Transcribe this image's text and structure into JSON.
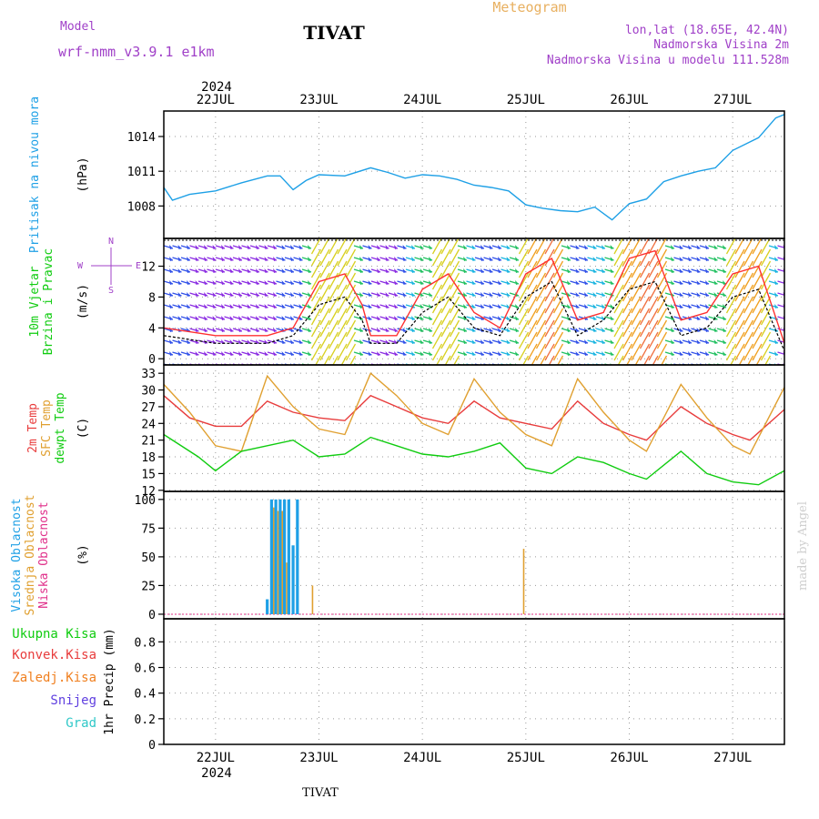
{
  "header": {
    "title": "TIVAT",
    "subtitle": "Meteogram",
    "model_label": "Model",
    "model_name": "wrf-nmm_v3.9.1 e1km",
    "location": "lon,lat (18.65E, 42.4N)",
    "elevation": "Nadmorska Visina 2m",
    "model_elevation": "Nadmorska Visina u modelu 111.528m"
  },
  "footer": {
    "station": "TIVAT",
    "credit": "made by Angel"
  },
  "colors": {
    "pressure": "#1ea0e6",
    "wind_speed": "#000000",
    "wind_gust": "#ff3030",
    "temp_2m": "#e83c3c",
    "temp_sfc": "#e0a030",
    "dewpoint": "#10cc10",
    "cloud_high": "#1ea0e6",
    "cloud_mid": "#e0a030",
    "cloud_low": "#e0308a",
    "precip_total": "#10cc10",
    "precip_conv": "#e83c3c",
    "precip_frozen": "#f08020",
    "snow": "#6040e0",
    "hail": "#30c8c8",
    "label_purple": "#a040c8"
  },
  "chart_data": {
    "type": "line",
    "x_axis": {
      "year": "2024",
      "ticks": [
        "22JUL",
        "23JUL",
        "24JUL",
        "25JUL",
        "26JUL",
        "27JUL"
      ],
      "start": "2024-07-21T12:00",
      "end": "2024-07-27T12:00"
    },
    "panels": [
      {
        "id": "pressure",
        "ylabels": [
          "Pritisak na nivou mora"
        ],
        "unit": "(hPa)",
        "yticks": [
          "1008",
          "1011",
          "1014"
        ],
        "ylim": [
          1005.2,
          1016.2
        ],
        "series": [
          {
            "key": "pressure",
            "points": [
              [
                "2024-07-21T12:00",
                1009.6
              ],
              [
                "2024-07-21T14:00",
                1008.5
              ],
              [
                "2024-07-21T18:00",
                1009.0
              ],
              [
                "2024-07-22T00:00",
                1009.3
              ],
              [
                "2024-07-22T06:00",
                1010.0
              ],
              [
                "2024-07-22T12:00",
                1010.6
              ],
              [
                "2024-07-22T15:00",
                1010.6
              ],
              [
                "2024-07-22T18:00",
                1009.4
              ],
              [
                "2024-07-22T21:00",
                1010.2
              ],
              [
                "2024-07-23T00:00",
                1010.7
              ],
              [
                "2024-07-23T06:00",
                1010.6
              ],
              [
                "2024-07-23T12:00",
                1011.3
              ],
              [
                "2024-07-23T16:00",
                1010.9
              ],
              [
                "2024-07-23T20:00",
                1010.4
              ],
              [
                "2024-07-24T00:00",
                1010.7
              ],
              [
                "2024-07-24T04:00",
                1010.6
              ],
              [
                "2024-07-24T08:00",
                1010.3
              ],
              [
                "2024-07-24T12:00",
                1009.8
              ],
              [
                "2024-07-24T16:00",
                1009.6
              ],
              [
                "2024-07-24T20:00",
                1009.3
              ],
              [
                "2024-07-25T00:00",
                1008.1
              ],
              [
                "2024-07-25T04:00",
                1007.8
              ],
              [
                "2024-07-25T08:00",
                1007.6
              ],
              [
                "2024-07-25T12:00",
                1007.5
              ],
              [
                "2024-07-25T16:00",
                1007.9
              ],
              [
                "2024-07-25T20:00",
                1006.8
              ],
              [
                "2024-07-26T00:00",
                1008.2
              ],
              [
                "2024-07-26T04:00",
                1008.6
              ],
              [
                "2024-07-26T08:00",
                1010.1
              ],
              [
                "2024-07-26T12:00",
                1010.6
              ],
              [
                "2024-07-26T16:00",
                1011.0
              ],
              [
                "2024-07-26T20:00",
                1011.3
              ],
              [
                "2024-07-27T00:00",
                1012.8
              ],
              [
                "2024-07-27T06:00",
                1013.9
              ],
              [
                "2024-07-27T10:00",
                1015.6
              ],
              [
                "2024-07-27T12:00",
                1015.9
              ]
            ]
          }
        ]
      },
      {
        "id": "wind",
        "ylabels": [
          "10m Vjetar",
          "Brzina i Pravac"
        ],
        "unit": "(m/s)",
        "yticks": [
          "0",
          "4",
          "8",
          "12"
        ],
        "ylim": [
          -0.8,
          15.6
        ],
        "compass": {
          "north": "N",
          "south": "S",
          "east": "E",
          "west": "W"
        },
        "series": [
          {
            "key": "wind_speed",
            "points": [
              [
                "2024-07-21T12:00",
                3
              ],
              [
                "2024-07-22T00:00",
                2
              ],
              [
                "2024-07-22T12:00",
                2
              ],
              [
                "2024-07-22T18:00",
                3
              ],
              [
                "2024-07-23T00:00",
                7
              ],
              [
                "2024-07-23T06:00",
                8
              ],
              [
                "2024-07-23T10:00",
                5
              ],
              [
                "2024-07-23T12:00",
                2
              ],
              [
                "2024-07-23T18:00",
                2
              ],
              [
                "2024-07-24T00:00",
                6
              ],
              [
                "2024-07-24T06:00",
                8
              ],
              [
                "2024-07-24T12:00",
                4
              ],
              [
                "2024-07-24T18:00",
                3
              ],
              [
                "2024-07-25T00:00",
                8
              ],
              [
                "2024-07-25T06:00",
                10
              ],
              [
                "2024-07-25T12:00",
                3
              ],
              [
                "2024-07-25T18:00",
                5
              ],
              [
                "2024-07-26T00:00",
                9
              ],
              [
                "2024-07-26T06:00",
                10
              ],
              [
                "2024-07-26T12:00",
                3
              ],
              [
                "2024-07-26T18:00",
                4
              ],
              [
                "2024-07-27T00:00",
                8
              ],
              [
                "2024-07-27T06:00",
                9
              ],
              [
                "2024-07-27T12:00",
                1
              ]
            ]
          },
          {
            "key": "wind_gust",
            "points": [
              [
                "2024-07-21T12:00",
                4
              ],
              [
                "2024-07-22T00:00",
                3
              ],
              [
                "2024-07-22T12:00",
                3
              ],
              [
                "2024-07-22T18:00",
                4
              ],
              [
                "2024-07-23T00:00",
                10
              ],
              [
                "2024-07-23T06:00",
                11
              ],
              [
                "2024-07-23T10:00",
                7
              ],
              [
                "2024-07-23T12:00",
                3
              ],
              [
                "2024-07-23T18:00",
                3
              ],
              [
                "2024-07-24T00:00",
                9
              ],
              [
                "2024-07-24T06:00",
                11
              ],
              [
                "2024-07-24T12:00",
                6
              ],
              [
                "2024-07-24T18:00",
                4
              ],
              [
                "2024-07-25T00:00",
                11
              ],
              [
                "2024-07-25T06:00",
                13
              ],
              [
                "2024-07-25T12:00",
                5
              ],
              [
                "2024-07-25T18:00",
                6
              ],
              [
                "2024-07-26T00:00",
                13
              ],
              [
                "2024-07-26T06:00",
                14
              ],
              [
                "2024-07-26T12:00",
                5
              ],
              [
                "2024-07-26T18:00",
                6
              ],
              [
                "2024-07-27T00:00",
                11
              ],
              [
                "2024-07-27T06:00",
                12
              ],
              [
                "2024-07-27T12:00",
                2
              ]
            ]
          }
        ]
      },
      {
        "id": "temperature",
        "ylabels": [
          "2m Temp",
          "SFC Temp",
          "dewpt Temp"
        ],
        "unit": "(C)",
        "yticks": [
          "12",
          "15",
          "18",
          "21",
          "24",
          "27",
          "30",
          "33"
        ],
        "ylim": [
          11.8,
          34.5
        ],
        "series": [
          {
            "key": "temp_2m",
            "points": [
              [
                "2024-07-21T12:00",
                29
              ],
              [
                "2024-07-21T18:00",
                25
              ],
              [
                "2024-07-22T00:00",
                23.5
              ],
              [
                "2024-07-22T06:00",
                23.5
              ],
              [
                "2024-07-22T12:00",
                28
              ],
              [
                "2024-07-22T18:00",
                26
              ],
              [
                "2024-07-23T00:00",
                25
              ],
              [
                "2024-07-23T06:00",
                24.5
              ],
              [
                "2024-07-23T12:00",
                29
              ],
              [
                "2024-07-23T18:00",
                27
              ],
              [
                "2024-07-24T00:00",
                25
              ],
              [
                "2024-07-24T06:00",
                24
              ],
              [
                "2024-07-24T12:00",
                28
              ],
              [
                "2024-07-24T18:00",
                25
              ],
              [
                "2024-07-25T00:00",
                24
              ],
              [
                "2024-07-25T06:00",
                23
              ],
              [
                "2024-07-25T12:00",
                28
              ],
              [
                "2024-07-25T18:00",
                24
              ],
              [
                "2024-07-26T00:00",
                22
              ],
              [
                "2024-07-26T04:00",
                21
              ],
              [
                "2024-07-26T12:00",
                27
              ],
              [
                "2024-07-26T18:00",
                24
              ],
              [
                "2024-07-27T00:00",
                22
              ],
              [
                "2024-07-27T04:00",
                21
              ],
              [
                "2024-07-27T12:00",
                26.5
              ]
            ]
          },
          {
            "key": "temp_sfc",
            "points": [
              [
                "2024-07-21T12:00",
                31
              ],
              [
                "2024-07-21T18:00",
                26
              ],
              [
                "2024-07-22T00:00",
                20
              ],
              [
                "2024-07-22T06:00",
                19
              ],
              [
                "2024-07-22T12:00",
                32.5
              ],
              [
                "2024-07-22T18:00",
                27
              ],
              [
                "2024-07-23T00:00",
                23
              ],
              [
                "2024-07-23T06:00",
                22
              ],
              [
                "2024-07-23T12:00",
                33
              ],
              [
                "2024-07-23T18:00",
                29
              ],
              [
                "2024-07-24T00:00",
                24
              ],
              [
                "2024-07-24T06:00",
                22
              ],
              [
                "2024-07-24T12:00",
                32
              ],
              [
                "2024-07-24T18:00",
                26
              ],
              [
                "2024-07-25T00:00",
                22
              ],
              [
                "2024-07-25T06:00",
                20
              ],
              [
                "2024-07-25T12:00",
                32
              ],
              [
                "2024-07-25T18:00",
                26
              ],
              [
                "2024-07-26T00:00",
                21
              ],
              [
                "2024-07-26T04:00",
                19
              ],
              [
                "2024-07-26T12:00",
                31
              ],
              [
                "2024-07-26T18:00",
                25
              ],
              [
                "2024-07-27T00:00",
                20
              ],
              [
                "2024-07-27T04:00",
                18.5
              ],
              [
                "2024-07-27T12:00",
                30.5
              ]
            ]
          },
          {
            "key": "dewpoint",
            "points": [
              [
                "2024-07-21T12:00",
                22
              ],
              [
                "2024-07-21T20:00",
                18
              ],
              [
                "2024-07-22T00:00",
                15.5
              ],
              [
                "2024-07-22T06:00",
                19
              ],
              [
                "2024-07-22T12:00",
                20
              ],
              [
                "2024-07-22T18:00",
                21
              ],
              [
                "2024-07-23T00:00",
                18
              ],
              [
                "2024-07-23T06:00",
                18.5
              ],
              [
                "2024-07-23T12:00",
                21.5
              ],
              [
                "2024-07-23T18:00",
                20
              ],
              [
                "2024-07-24T00:00",
                18.5
              ],
              [
                "2024-07-24T06:00",
                18
              ],
              [
                "2024-07-24T12:00",
                19
              ],
              [
                "2024-07-24T18:00",
                20.5
              ],
              [
                "2024-07-25T00:00",
                16
              ],
              [
                "2024-07-25T06:00",
                15
              ],
              [
                "2024-07-25T12:00",
                18
              ],
              [
                "2024-07-25T18:00",
                17
              ],
              [
                "2024-07-26T00:00",
                15
              ],
              [
                "2024-07-26T04:00",
                14
              ],
              [
                "2024-07-26T12:00",
                19
              ],
              [
                "2024-07-26T18:00",
                15
              ],
              [
                "2024-07-27T00:00",
                13.5
              ],
              [
                "2024-07-27T06:00",
                13
              ],
              [
                "2024-07-27T12:00",
                15.5
              ]
            ]
          }
        ]
      },
      {
        "id": "clouds",
        "ylabels": [
          "Visoka Oblacnost",
          "Srednja Oblacnost",
          "Niska Oblacnost"
        ],
        "unit": "(%)",
        "yticks": [
          "0",
          "25",
          "50",
          "75",
          "100"
        ],
        "ylim": [
          -4,
          107
        ],
        "bars": [
          {
            "x": "2024-07-22T12:00",
            "high": 13,
            "mid": 0,
            "low": 0
          },
          {
            "x": "2024-07-22T13:00",
            "high": 100,
            "mid": 93,
            "low": 0
          },
          {
            "x": "2024-07-22T14:00",
            "high": 100,
            "mid": 90,
            "low": 0
          },
          {
            "x": "2024-07-22T15:00",
            "high": 100,
            "mid": 90,
            "low": 0
          },
          {
            "x": "2024-07-22T16:00",
            "high": 100,
            "mid": 45,
            "low": 0
          },
          {
            "x": "2024-07-22T17:00",
            "high": 100,
            "mid": 0,
            "low": 0
          },
          {
            "x": "2024-07-22T18:00",
            "high": 60,
            "mid": 0,
            "low": 0
          },
          {
            "x": "2024-07-22T19:00",
            "high": 100,
            "mid": 0,
            "low": 0
          },
          {
            "x": "2024-07-22T22:00",
            "high": 0,
            "mid": 25,
            "low": 0
          },
          {
            "x": "2024-07-24T23:00",
            "high": 0,
            "mid": 57,
            "low": 0
          }
        ]
      },
      {
        "id": "precip",
        "ylabels": [
          "1hr Precip (mm)"
        ],
        "unit": "",
        "yticks": [
          "0",
          "0.2",
          "0.4",
          "0.6",
          "0.8"
        ],
        "ylim": [
          0,
          0.98
        ],
        "legend": [
          "Ukupna Kisa",
          "Konvek.Kisa",
          "Zaledj.Kisa",
          "Snijeg",
          "Grad"
        ],
        "series": []
      }
    ]
  }
}
